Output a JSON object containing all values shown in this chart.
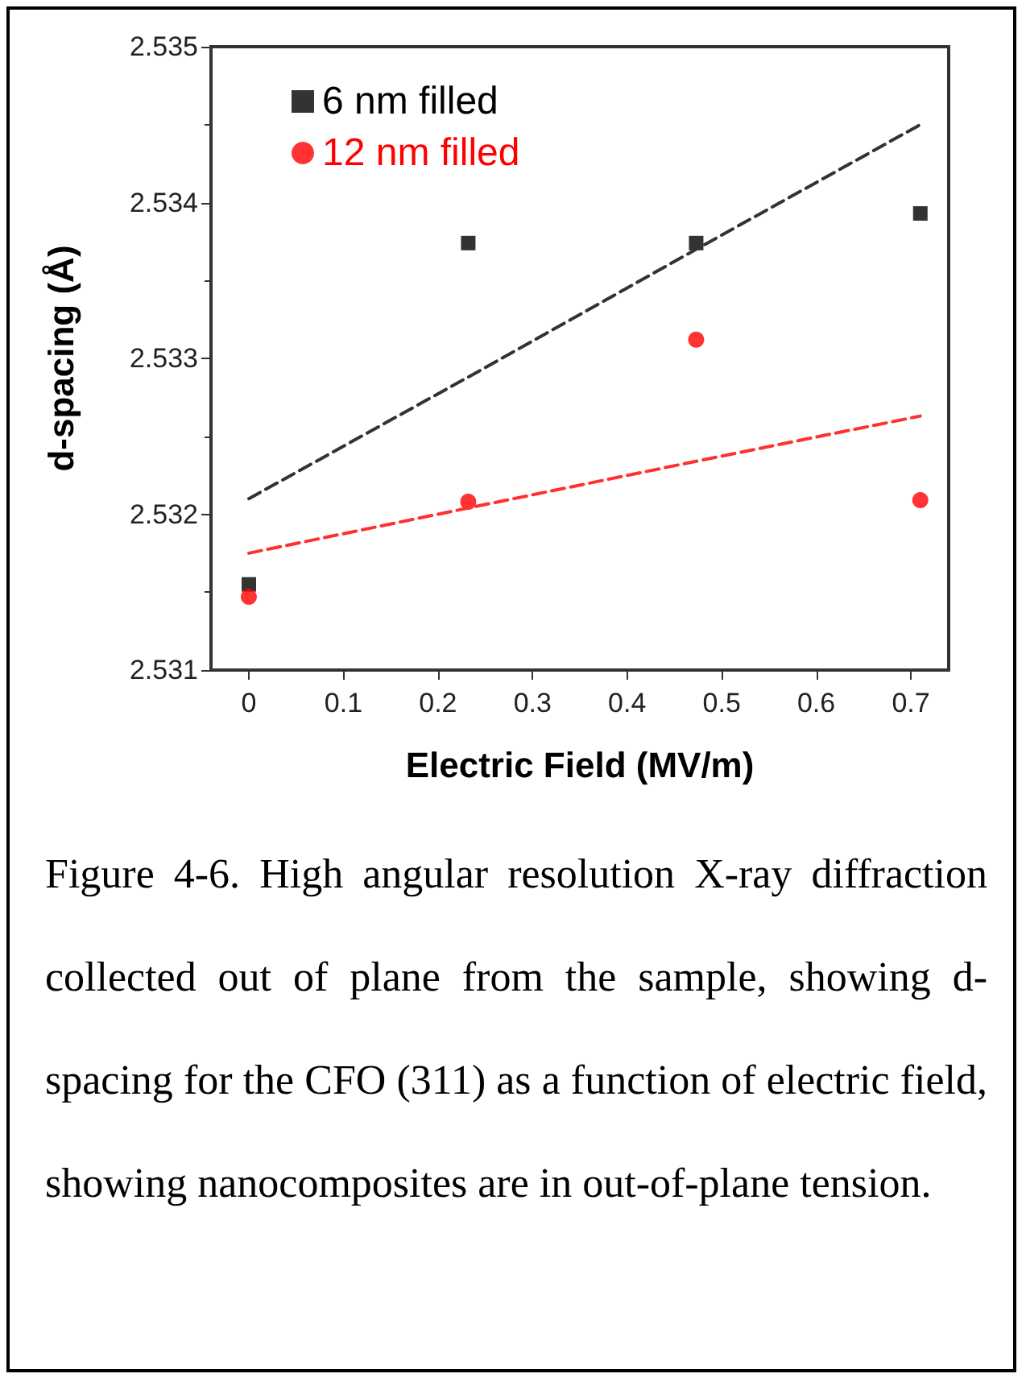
{
  "chart_data": {
    "type": "scatter",
    "xlabel": "Electric Field (MV/m)",
    "ylabel": "d-spacing (Å)",
    "x": [
      0,
      0.232,
      0.473,
      0.71
    ],
    "series": [
      {
        "name": "6 nm filled",
        "color": "#000000",
        "marker": "square",
        "values": [
          2.53155,
          2.53374,
          2.53374,
          2.53393
        ]
      },
      {
        "name": "12 nm filled",
        "color": "#ff0000",
        "marker": "circle",
        "values": [
          2.53147,
          2.53208,
          2.53312,
          2.53209
        ]
      },
      {
        "type": "line",
        "color": "#333333",
        "line_style": "dashed",
        "marker": "none",
        "values": [
          2.5321,
          2.53288,
          2.5337,
          2.5345
        ]
      },
      {
        "type": "line",
        "color": "#ff3030",
        "line_style": "dashed",
        "marker": "none",
        "values": [
          2.53175,
          2.53204,
          2.53234,
          2.53263
        ]
      }
    ],
    "xlim": [
      -0.04,
      0.74
    ],
    "xticks": [
      0,
      0.1,
      0.2,
      0.3,
      0.4,
      0.5,
      0.6,
      0.7
    ],
    "ylim": [
      2.531,
      2.535
    ],
    "yticks": [
      2.531,
      2.532,
      2.533,
      2.534,
      2.535
    ],
    "grid": false,
    "legend": "top left",
    "annotations": [
      "Figure 4-6. High angular resolution X-ray diffraction collected out of plane from the sample, showing d-spacing for the CFO (311) as a function of electric field, showing nanocomposites are in out-of-plane tension."
    ]
  }
}
